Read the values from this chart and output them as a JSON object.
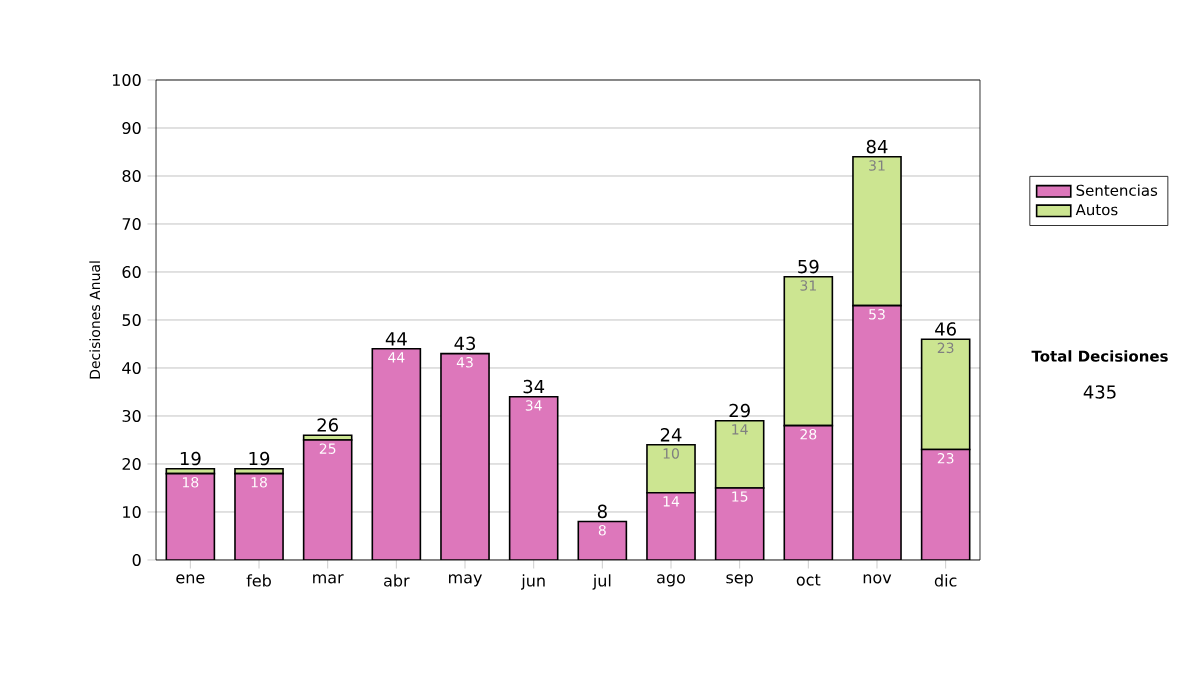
{
  "chart_data": {
    "type": "bar",
    "stacked": true,
    "ylabel": "Decisiones Anual",
    "categories": [
      "ene",
      "feb",
      "mar",
      "abr",
      "may",
      "jun",
      "jul",
      "ago",
      "sep",
      "oct",
      "nov",
      "dic"
    ],
    "series": [
      {
        "name": "Sentencias",
        "color": "#dd77bb",
        "values": [
          18,
          18,
          25,
          44,
          43,
          34,
          8,
          14,
          15,
          28,
          53,
          23
        ],
        "value_labels": [
          "18",
          "18",
          "25",
          "44",
          "43",
          "34",
          "8",
          "14",
          "15",
          "28",
          "53",
          "23"
        ]
      },
      {
        "name": "Autos",
        "color": "#cce591",
        "values": [
          1,
          1,
          1,
          0,
          0,
          0,
          0,
          10,
          14,
          31,
          31,
          23
        ],
        "value_labels": [
          null,
          null,
          null,
          null,
          null,
          null,
          null,
          "10",
          "14",
          "31",
          "31",
          "23"
        ]
      }
    ],
    "totals": [
      "19",
      "19",
      "26",
      "44",
      "43",
      "34",
      "8",
      "24",
      "29",
      "59",
      "84",
      "46"
    ],
    "ylim": [
      0,
      100
    ],
    "yticks": [
      0,
      10,
      20,
      30,
      40,
      50,
      60,
      70,
      80,
      90,
      100
    ],
    "grid": "y",
    "legend": "right",
    "annotations": [
      "Total Decisiones",
      "435"
    ]
  }
}
